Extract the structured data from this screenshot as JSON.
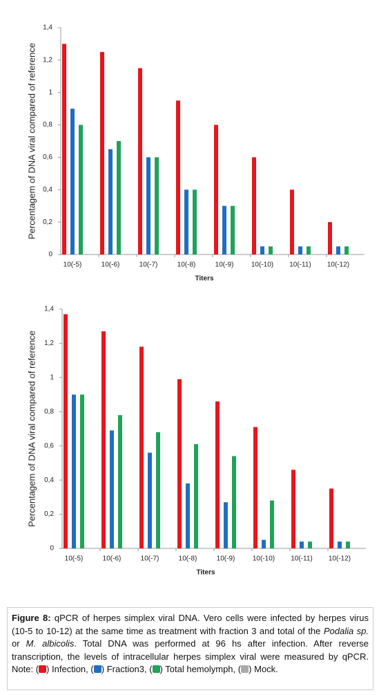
{
  "chart_data": [
    {
      "type": "bar",
      "y_label": "Percentagem of DNA viral compared of reference",
      "x_label": "Titers",
      "categories": [
        "10(-5)",
        "10(-6)",
        "10(-7)",
        "10(-8)",
        "10(-9)",
        "10(-10)",
        "10(-11)",
        "10(-12)"
      ],
      "series": [
        {
          "color": "#e5161c",
          "values": [
            1.3,
            1.25,
            1.15,
            0.95,
            0.8,
            0.6,
            0.4,
            0.2
          ]
        },
        {
          "color": "#1f6fc0",
          "values": [
            0.9,
            0.65,
            0.6,
            0.4,
            0.3,
            0.05,
            0.05,
            0.05
          ]
        },
        {
          "color": "#1fa35a",
          "values": [
            0.8,
            0.7,
            0.6,
            0.4,
            0.3,
            0.05,
            0.05,
            0.05
          ]
        }
      ],
      "ylim": [
        0,
        1.4
      ],
      "yticks": [
        0,
        {
          "value": 0.2,
          "label": "0,2"
        },
        {
          "value": 0.4,
          "label": "0,4"
        },
        {
          "value": 0.6,
          "label": "0,6"
        },
        {
          "value": 0.8,
          "label": "0,8"
        },
        1,
        {
          "value": 1.2,
          "label": "1,2"
        },
        {
          "value": 1.4,
          "label": "1,4"
        }
      ]
    },
    {
      "type": "bar",
      "y_label": "Percentagem of DNA viral compared of reference",
      "x_label": "Titers",
      "categories": [
        "10(-5)",
        "10(-6)",
        "10(-7)",
        "10(-8)",
        "10(-9)",
        "10(-10)",
        "10(-11)",
        "10(-12)"
      ],
      "series": [
        {
          "color": "#e5161c",
          "values": [
            1.37,
            1.27,
            1.18,
            0.99,
            0.86,
            0.71,
            0.46,
            0.35
          ]
        },
        {
          "color": "#1f6fc0",
          "values": [
            0.9,
            0.69,
            0.56,
            0.38,
            0.27,
            0.05,
            0.04,
            0.04
          ]
        },
        {
          "color": "#1fa35a",
          "values": [
            0.9,
            0.78,
            0.68,
            0.61,
            0.54,
            0.28,
            0.04,
            0.04
          ]
        }
      ],
      "ylim": [
        0,
        1.4
      ],
      "yticks": [
        0,
        {
          "value": 0.2,
          "label": "0,2"
        },
        {
          "value": 0.4,
          "label": "0,4"
        },
        {
          "value": 0.6,
          "label": "0,6"
        },
        {
          "value": 0.8,
          "label": "0,8"
        },
        1,
        {
          "value": 1.2,
          "label": "1,2"
        },
        {
          "value": 1.4,
          "label": "1,4"
        }
      ]
    }
  ],
  "caption": {
    "label": "Figure 8:",
    "parts": [
      "qPCR of herpes simplex viral DNA. Vero cells were infected by herpes virus (10-5 to 10-12) at the same time as treatment with fraction 3 and total of the",
      "Podalia sp.",
      "or",
      "M. albicolis",
      ". Total DNA was performed at 96 hs after infection. After reverse transcription, the levels of intracellular herpes simplex viral were measured by qPCR. Note:"
    ],
    "open": "(",
    "close": ")",
    "separator": ",",
    "end": ".",
    "legend": [
      {
        "name": "Infection",
        "color": "#e5161c"
      },
      {
        "name": "Fraction3",
        "color": "#1f6fc0"
      },
      {
        "name": "Total hemolymph",
        "color": "#1fa35a"
      },
      {
        "name": "Mock",
        "color": "#aaaaaa"
      }
    ]
  }
}
